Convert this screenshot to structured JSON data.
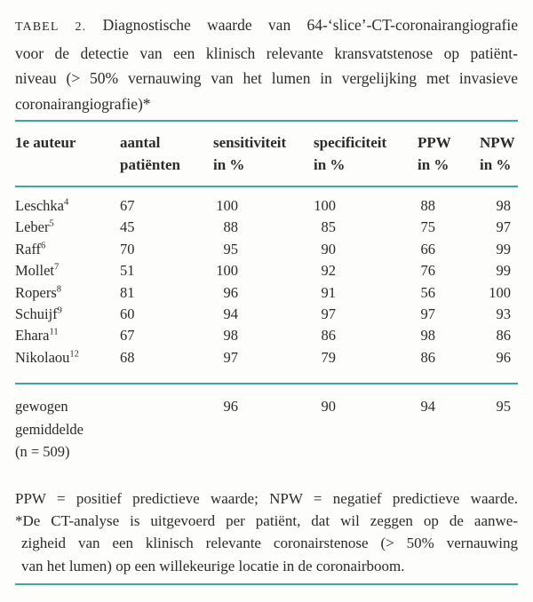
{
  "colors": {
    "rule_teal": "#3fa69b",
    "text": "#2b2b2b",
    "background": "#fdfdfc"
  },
  "title": {
    "label": "TABEL 2.",
    "line1_rest": "Diagnostische waarde van 64-‘slice’-CT-coronairangiografie",
    "line2": "voor de detectie van een klinisch relevante kransvatstenose op patiënt-",
    "line3": "niveau (> 50% vernauwing van het lumen in vergelijking met invasieve",
    "line4": "coronairangiografie)*"
  },
  "table": {
    "columns": [
      {
        "l1": "1e auteur",
        "l2": ""
      },
      {
        "l1": "aantal",
        "l2": "patiënten"
      },
      {
        "l1": "sensitiviteit",
        "l2": "in %"
      },
      {
        "l1": "specificiteit",
        "l2": "in %"
      },
      {
        "l1": "PPW",
        "l2": "in %"
      },
      {
        "l1": "NPW",
        "l2": "in %"
      }
    ],
    "rows": [
      {
        "name": "Leschka",
        "ref": "4",
        "n": "67",
        "sens": "100",
        "spec": "100",
        "ppw": "88",
        "npw": "98"
      },
      {
        "name": "Leber",
        "ref": "5",
        "n": "45",
        "sens": "88",
        "spec": "85",
        "ppw": "75",
        "npw": "97"
      },
      {
        "name": "Raff",
        "ref": "6",
        "n": "70",
        "sens": "95",
        "spec": "90",
        "ppw": "66",
        "npw": "99"
      },
      {
        "name": "Mollet",
        "ref": "7",
        "n": "51",
        "sens": "100",
        "spec": "92",
        "ppw": "76",
        "npw": "99"
      },
      {
        "name": "Ropers",
        "ref": "8",
        "n": "81",
        "sens": "96",
        "spec": "91",
        "ppw": "56",
        "npw": "100"
      },
      {
        "name": "Schuijf",
        "ref": "9",
        "n": "60",
        "sens": "94",
        "spec": "97",
        "ppw": "97",
        "npw": "93"
      },
      {
        "name": "Ehara",
        "ref": "11",
        "n": "67",
        "sens": "98",
        "spec": "86",
        "ppw": "98",
        "npw": "86"
      },
      {
        "name": "Nikolaou",
        "ref": "12",
        "n": "68",
        "sens": "97",
        "spec": "79",
        "ppw": "86",
        "npw": "96"
      }
    ],
    "summary": {
      "label_line1": "gewogen",
      "label_line2": "gemiddelde",
      "label_line3": "(n = 509)",
      "sens": "96",
      "spec": "90",
      "ppw": "94",
      "npw": "95"
    }
  },
  "footnotes": {
    "line1": "PPW = positief predictieve waarde; NPW = negatief predictieve waarde.",
    "line2": "*De CT-analyse is uitgevoerd per patiënt, dat wil zeggen op de aanwe-",
    "line3": "zigheid van een klinisch relevante coronairstenose (> 50% vernauwing",
    "line4": "van het lumen) op een willekeurige locatie in de coronairboom."
  }
}
